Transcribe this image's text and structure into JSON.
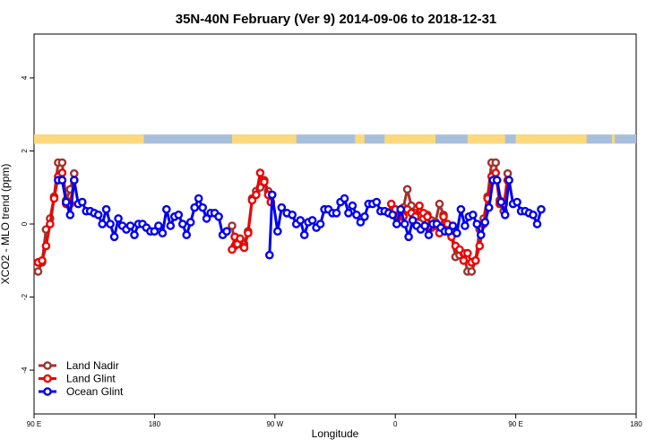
{
  "chart_data": {
    "type": "line",
    "title": "35N-40N February (Ver 9)   2014-09-06 to 2018-12-31",
    "xlabel": "Longitude",
    "ylabel": "XCO2 - MLO trend (ppm)",
    "xlim": [
      90,
      540
    ],
    "ylim": [
      -5.2,
      5.2
    ],
    "x_ticks": [
      {
        "value": 90,
        "label": "90 E"
      },
      {
        "value": 180,
        "label": "180"
      },
      {
        "value": 270,
        "label": "90 W"
      },
      {
        "value": 360,
        "label": "0"
      },
      {
        "value": 450,
        "label": "90 E"
      },
      {
        "value": 540,
        "label": "180"
      }
    ],
    "y_ticks": [
      {
        "value": -4,
        "label": "-4"
      },
      {
        "value": -2,
        "label": "-2"
      },
      {
        "value": 0,
        "label": "0"
      },
      {
        "value": 2,
        "label": "2"
      },
      {
        "value": 4,
        "label": "4"
      }
    ],
    "grid": false,
    "legend_position": "bottom-left",
    "surface_band": {
      "y_range": [
        2.2,
        2.45
      ],
      "ocean_color": "#a8bfdc",
      "land_color": "#fbd97c",
      "land_segments": [
        [
          90,
          172
        ],
        [
          238,
          286
        ],
        [
          330,
          337
        ],
        [
          352,
          390
        ],
        [
          414,
          442
        ],
        [
          450,
          503
        ],
        [
          522,
          524
        ]
      ]
    },
    "series": [
      {
        "name": "Land Nadir",
        "color": "#a0322d",
        "points": [
          [
            93,
            -1.3
          ],
          [
            96,
            -1.05
          ],
          [
            99,
            -0.15
          ],
          [
            102,
            0.15
          ],
          [
            105,
            0.75
          ],
          [
            108,
            1.68
          ],
          [
            111,
            1.68
          ],
          [
            114,
            0.65
          ],
          [
            117,
            0.95
          ],
          [
            120,
            1.38
          ],
          [
            238,
            -0.05
          ],
          [
            240,
            -0.6
          ],
          [
            242,
            -0.4
          ],
          [
            244,
            -0.55
          ],
          [
            247,
            -0.55
          ],
          [
            250,
            -0.2
          ],
          [
            253,
            0.7
          ],
          [
            256,
            0.9
          ],
          [
            259,
            1.0
          ],
          [
            262,
            1.2
          ],
          [
            265,
            0.9
          ],
          [
            267,
            0.6
          ],
          [
            357,
            0.35
          ],
          [
            360,
            0.3
          ],
          [
            363,
            0.3
          ],
          [
            366,
            0.45
          ],
          [
            369,
            0.95
          ],
          [
            372,
            0.5
          ],
          [
            375,
            0.3
          ],
          [
            378,
            0.2
          ],
          [
            381,
            0.15
          ],
          [
            384,
            0.25
          ],
          [
            387,
            0.1
          ],
          [
            390,
            0.05
          ],
          [
            393,
            0.55
          ],
          [
            396,
            0.25
          ],
          [
            399,
            -0.1
          ],
          [
            402,
            -0.3
          ],
          [
            405,
            -0.9
          ],
          [
            408,
            -0.85
          ],
          [
            411,
            -0.8
          ],
          [
            414,
            -1.3
          ],
          [
            417,
            -1.3
          ],
          [
            420,
            -1.0
          ],
          [
            423,
            -0.15
          ],
          [
            426,
            0.15
          ],
          [
            429,
            0.75
          ],
          [
            432,
            1.68
          ],
          [
            435,
            1.68
          ],
          [
            438,
            0.65
          ],
          [
            441,
            0.35
          ],
          [
            444,
            1.38
          ]
        ]
      },
      {
        "name": "Land Glint",
        "color": "#ef0000",
        "points": [
          [
            93,
            -1.05
          ],
          [
            96,
            -1.0
          ],
          [
            99,
            -0.6
          ],
          [
            102,
            0.0
          ],
          [
            105,
            0.7
          ],
          [
            108,
            1.3
          ],
          [
            111,
            1.4
          ],
          [
            114,
            0.55
          ],
          [
            117,
            0.55
          ],
          [
            120,
            1.2
          ],
          [
            238,
            -0.7
          ],
          [
            240,
            -0.35
          ],
          [
            242,
            -0.55
          ],
          [
            244,
            -0.4
          ],
          [
            247,
            -0.65
          ],
          [
            250,
            -0.25
          ],
          [
            253,
            0.65
          ],
          [
            256,
            0.8
          ],
          [
            259,
            1.4
          ],
          [
            262,
            1.15
          ],
          [
            265,
            0.8
          ],
          [
            267,
            0.6
          ],
          [
            357,
            0.55
          ],
          [
            360,
            0.4
          ],
          [
            363,
            0.2
          ],
          [
            366,
            0.2
          ],
          [
            369,
            0.4
          ],
          [
            372,
            0.3
          ],
          [
            375,
            0.2
          ],
          [
            378,
            0.5
          ],
          [
            381,
            0.3
          ],
          [
            384,
            0.2
          ],
          [
            387,
            -0.1
          ],
          [
            390,
            -0.05
          ],
          [
            393,
            -0.25
          ],
          [
            396,
            0.2
          ],
          [
            399,
            0.0
          ],
          [
            402,
            -0.35
          ],
          [
            405,
            -0.6
          ],
          [
            408,
            -0.7
          ],
          [
            411,
            -1.0
          ],
          [
            414,
            -0.8
          ],
          [
            417,
            -1.05
          ],
          [
            420,
            -1.0
          ],
          [
            423,
            -0.6
          ],
          [
            426,
            0.0
          ],
          [
            429,
            0.7
          ],
          [
            432,
            1.3
          ],
          [
            435,
            1.4
          ],
          [
            438,
            0.55
          ],
          [
            441,
            0.55
          ],
          [
            444,
            1.2
          ]
        ]
      },
      {
        "name": "Ocean Glint",
        "color": "#0000f0",
        "points": [
          [
            108,
            1.2
          ],
          [
            111,
            1.2
          ],
          [
            114,
            0.6
          ],
          [
            117,
            0.25
          ],
          [
            120,
            1.2
          ],
          [
            123,
            0.55
          ],
          [
            126,
            0.6
          ],
          [
            129,
            0.35
          ],
          [
            132,
            0.35
          ],
          [
            135,
            0.3
          ],
          [
            138,
            0.25
          ],
          [
            141,
            0.0
          ],
          [
            144,
            0.4
          ],
          [
            147,
            0.0
          ],
          [
            150,
            -0.35
          ],
          [
            153,
            0.15
          ],
          [
            156,
            -0.05
          ],
          [
            159,
            -0.15
          ],
          [
            162,
            -0.05
          ],
          [
            165,
            -0.3
          ],
          [
            168,
            0.0
          ],
          [
            171,
            0.0
          ],
          [
            174,
            -0.1
          ],
          [
            177,
            -0.2
          ],
          [
            180,
            -0.2
          ],
          [
            183,
            -0.05
          ],
          [
            186,
            -0.25
          ],
          [
            189,
            0.4
          ],
          [
            192,
            -0.05
          ],
          [
            195,
            0.2
          ],
          [
            198,
            0.25
          ],
          [
            201,
            0.0
          ],
          [
            204,
            -0.3
          ],
          [
            207,
            0.05
          ],
          [
            210,
            0.45
          ],
          [
            213,
            0.7
          ],
          [
            216,
            0.45
          ],
          [
            219,
            0.15
          ],
          [
            222,
            0.3
          ],
          [
            225,
            0.3
          ],
          [
            228,
            0.2
          ],
          [
            231,
            -0.3
          ],
          [
            234,
            -0.2
          ],
          [
            266,
            -0.85
          ],
          [
            268,
            0.8
          ],
          [
            272,
            -0.2
          ],
          [
            275,
            0.45
          ],
          [
            279,
            0.3
          ],
          [
            283,
            0.25
          ],
          [
            286,
            0.0
          ],
          [
            289,
            0.1
          ],
          [
            292,
            -0.3
          ],
          [
            295,
            0.05
          ],
          [
            298,
            0.1
          ],
          [
            301,
            -0.1
          ],
          [
            304,
            0.0
          ],
          [
            307,
            0.4
          ],
          [
            310,
            0.4
          ],
          [
            313,
            0.3
          ],
          [
            316,
            0.3
          ],
          [
            319,
            0.6
          ],
          [
            322,
            0.7
          ],
          [
            325,
            0.3
          ],
          [
            328,
            0.5
          ],
          [
            331,
            0.25
          ],
          [
            334,
            0.05
          ],
          [
            337,
            0.2
          ],
          [
            340,
            0.55
          ],
          [
            343,
            0.55
          ],
          [
            346,
            0.6
          ],
          [
            349,
            0.35
          ],
          [
            352,
            0.35
          ],
          [
            355,
            0.3
          ],
          [
            358,
            0.25
          ],
          [
            361,
            0.0
          ],
          [
            364,
            0.4
          ],
          [
            367,
            0.0
          ],
          [
            370,
            -0.35
          ],
          [
            373,
            0.1
          ],
          [
            376,
            -0.05
          ],
          [
            379,
            -0.15
          ],
          [
            382,
            -0.05
          ],
          [
            385,
            -0.3
          ],
          [
            388,
            0.0
          ],
          [
            391,
            0.0
          ],
          [
            394,
            -0.1
          ],
          [
            397,
            -0.2
          ],
          [
            400,
            -0.2
          ],
          [
            403,
            -0.05
          ],
          [
            406,
            -0.25
          ],
          [
            409,
            0.4
          ],
          [
            412,
            -0.05
          ],
          [
            415,
            0.2
          ],
          [
            418,
            0.25
          ],
          [
            421,
            0.0
          ],
          [
            424,
            -0.3
          ],
          [
            427,
            0.05
          ],
          [
            430,
            0.45
          ],
          [
            433,
            1.2
          ],
          [
            436,
            1.2
          ],
          [
            439,
            0.6
          ],
          [
            442,
            0.25
          ],
          [
            445,
            1.2
          ],
          [
            448,
            0.55
          ],
          [
            451,
            0.6
          ],
          [
            454,
            0.35
          ],
          [
            457,
            0.35
          ],
          [
            460,
            0.3
          ],
          [
            463,
            0.25
          ],
          [
            466,
            0.0
          ],
          [
            469,
            0.4
          ]
        ]
      }
    ]
  }
}
